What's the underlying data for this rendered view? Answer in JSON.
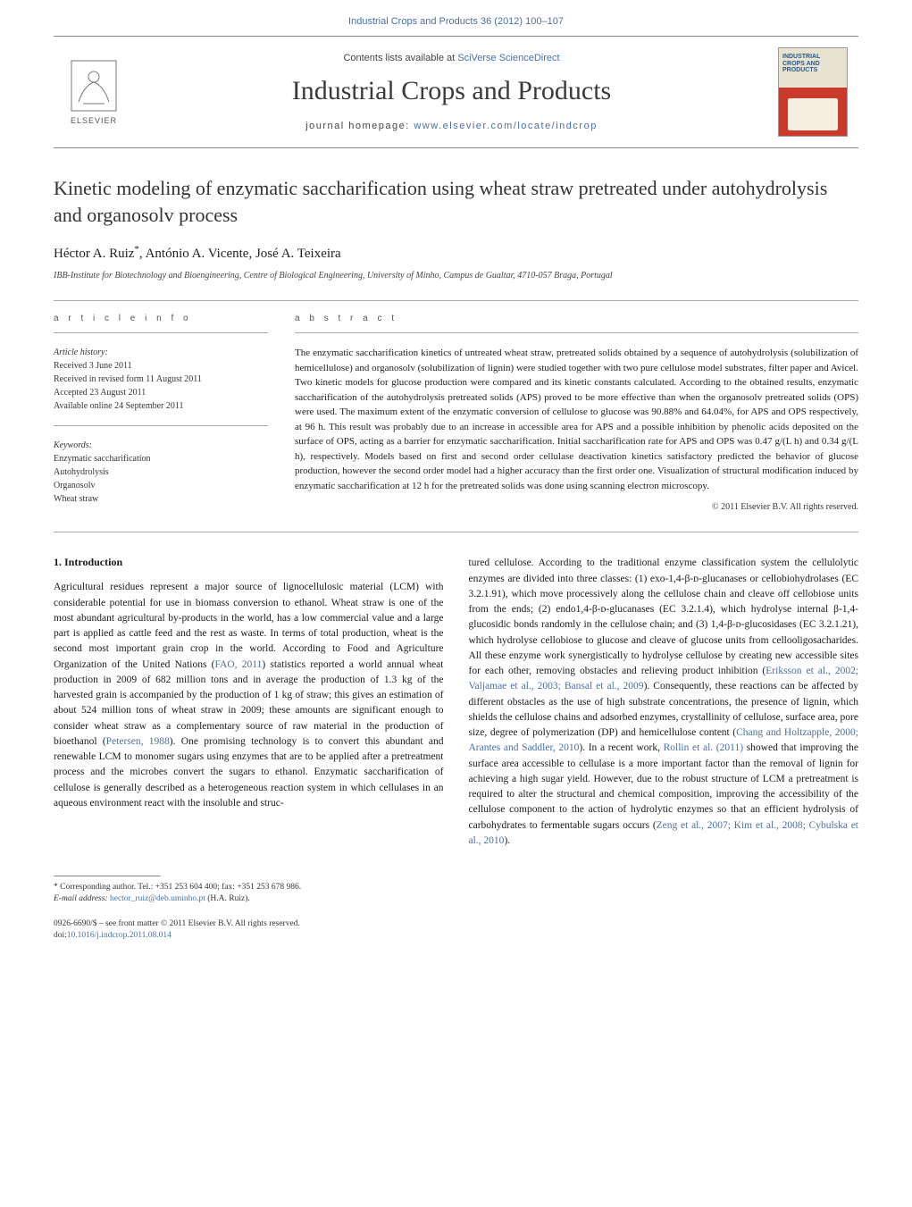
{
  "runningHeader": "Industrial Crops and Products 36 (2012) 100–107",
  "masthead": {
    "contentsPrefix": "Contents lists available at ",
    "contentsLink": "SciVerse ScienceDirect",
    "journalName": "Industrial Crops and Products",
    "homepagePrefix": "journal homepage: ",
    "homepageLink": "www.elsevier.com/locate/indcrop",
    "publisherLabel": "ELSEVIER",
    "coverTitle": "INDUSTRIAL CROPS AND PRODUCTS"
  },
  "article": {
    "title": "Kinetic modeling of enzymatic saccharification using wheat straw pretreated under autohydrolysis and organosolv process",
    "authorsHtml": "Héctor A. Ruiz<span class=\"corr\">*</span>, António A. Vicente, José A. Teixeira",
    "affiliation": "IBB-Institute for Biotechnology and Bioengineering, Centre of Biological Engineering, University of Minho, Campus de Gualtar, 4710-057 Braga, Portugal"
  },
  "labels": {
    "articleInfo": "a r t i c l e   i n f o",
    "abstract": "a b s t r a c t",
    "history": "Article history:",
    "keywords": "Keywords:",
    "introduction": "1.  Introduction"
  },
  "history": {
    "received": "Received 3 June 2011",
    "revised": "Received in revised form 11 August 2011",
    "accepted": "Accepted 23 August 2011",
    "online": "Available online 24 September 2011"
  },
  "keywords": [
    "Enzymatic saccharification",
    "Autohydrolysis",
    "Organosolv",
    "Wheat straw"
  ],
  "abstract": "The enzymatic saccharification kinetics of untreated wheat straw, pretreated solids obtained by a sequence of autohydrolysis (solubilization of hemicellulose) and organosolv (solubilization of lignin) were studied together with two pure cellulose model substrates, filter paper and Avicel. Two kinetic models for glucose production were compared and its kinetic constants calculated. According to the obtained results, enzymatic saccharification of the autohydrolysis pretreated solids (APS) proved to be more effective than when the organosolv pretreated solids (OPS) were used. The maximum extent of the enzymatic conversion of cellulose to glucose was 90.88% and 64.04%, for APS and OPS respectively, at 96 h. This result was probably due to an increase in accessible area for APS and a possible inhibition by phenolic acids deposited on the surface of OPS, acting as a barrier for enzymatic saccharification. Initial saccharification rate for APS and OPS was 0.47 g/(L h) and 0.34 g/(L h), respectively. Models based on first and second order cellulase deactivation kinetics satisfactory predicted the behavior of glucose production, however the second order model had a higher accuracy than the first order one. Visualization of structural modification induced by enzymatic saccharification at 12 h for the pretreated solids was done using scanning electron microscopy.",
  "copyright": "© 2011 Elsevier B.V. All rights reserved.",
  "body": {
    "leftParas": [
      "Agricultural residues represent a major source of lignocellulosic material (LCM) with considerable potential for use in biomass conversion to ethanol. Wheat straw is one of the most abundant agricultural by-products in the world, has a low commercial value and a large part is applied as cattle feed and the rest as waste. In terms of total production, wheat is the second most important grain crop in the world. According to Food and Agriculture Organization of the United Nations (<a href=\"#\">FAO, 2011</a>) statistics reported a world annual wheat production in 2009 of 682 million tons and in average the production of 1.3 kg of the harvested grain is accompanied by the production of 1 kg of straw; this gives an estimation of about 524 million tons of wheat straw in 2009; these amounts are significant enough to consider wheat straw as a complementary source of raw material in the production of bioethanol (<a href=\"#\">Petersen, 1988</a>). One promising technology is to convert this abundant and renewable LCM to monomer sugars using enzymes that are to be applied after a pretreatment process and the microbes convert the sugars to ethanol. Enzymatic saccharification of cellulose is generally described as a heterogeneous reaction system in which cellulases in an aqueous environment react with the insoluble and struc-"
    ],
    "rightParas": [
      "tured cellulose. According to the traditional enzyme classification system the cellulolytic enzymes are divided into three classes: (1) exo-1,4-β-ᴅ-glucanases or cellobiohydrolases (EC 3.2.1.91), which move processively along the cellulose chain and cleave off cellobiose units from the ends; (2) endo1,4-β-ᴅ-glucanases (EC 3.2.1.4), which hydrolyse internal β-1,4-glucosidic bonds randomly in the cellulose chain; and (3) 1,4-β-ᴅ-glucosidases (EC 3.2.1.21), which hydrolyse cellobiose to glucose and cleave of glucose units from cellooligosacharides. All these enzyme work synergistically to hydrolyse cellulose by creating new accessible sites for each other, removing obstacles and relieving product inhibition (<a href=\"#\">Eriksson et al., 2002; Valjamae et al., 2003; Bansal et al., 2009</a>). Consequently, these reactions can be affected by different obstacles as the use of high substrate concentrations, the presence of lignin, which shields the cellulose chains and adsorbed enzymes, crystallinity of cellulose, surface area, pore size, degree of polymerization (DP) and hemicellulose content (<a href=\"#\">Chang and Holtzapple, 2000; Arantes and Saddler, 2010</a>). In a recent work, <a href=\"#\">Rollin et al. (2011)</a> showed that improving the surface area accessible to cellulase is a more important factor than the removal of lignin for achieving a high sugar yield. However, due to the robust structure of LCM a pretreatment is required to alter the structural and chemical composition, improving the accessibility of the cellulose component to the action of hydrolytic enzymes so that an efficient hydrolysis of carbohydrates to fermentable sugars occurs (<a href=\"#\">Zeng et al., 2007; Kim et al., 2008; Cybulska et al., 2010</a>)."
    ]
  },
  "footnote": {
    "line1": "* Corresponding author. Tel.: +351 253 604 400; fax: +351 253 678 986.",
    "emailLabel": "E-mail address: ",
    "email": "hector_ruiz@deb.uminho.pt",
    "emailSuffix": " (H.A. Ruiz)."
  },
  "doi": {
    "issn": "0926-6690/$ – see front matter © 2011 Elsevier B.V. All rights reserved.",
    "doiPrefix": "doi:",
    "doi": "10.1016/j.indcrop.2011.08.014"
  },
  "colors": {
    "link": "#4a6fa5",
    "text": "#1a1a1a",
    "muted": "#555",
    "rule": "#aaa"
  }
}
